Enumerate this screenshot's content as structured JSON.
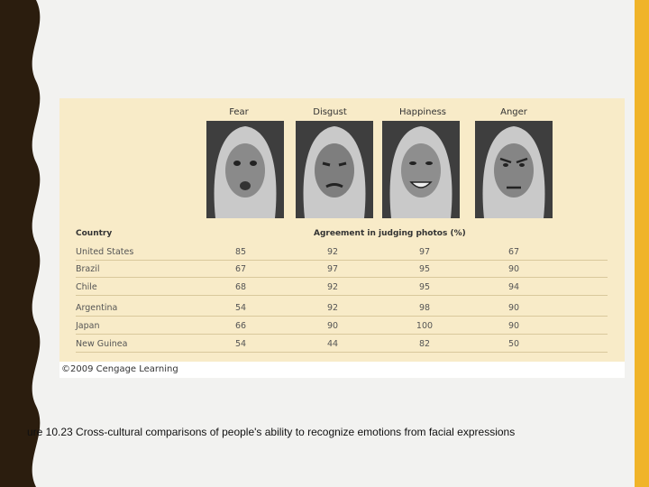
{
  "figure": {
    "emotions": [
      "Fear",
      "Disgust",
      "Happiness",
      "Anger"
    ],
    "table_header_country": "Country",
    "table_header_agreement": "Agreement in judging photos (%)",
    "rows": [
      {
        "country": "United States",
        "values": [
          "85",
          "92",
          "97",
          "67"
        ]
      },
      {
        "country": "Brazil",
        "values": [
          "67",
          "97",
          "95",
          "90"
        ]
      },
      {
        "country": "Chile",
        "values": [
          "68",
          "92",
          "95",
          "94"
        ]
      },
      {
        "country": "Argentina",
        "values": [
          "54",
          "92",
          "98",
          "90"
        ]
      },
      {
        "country": "Japan",
        "values": [
          "66",
          "90",
          "100",
          "90"
        ]
      },
      {
        "country": "New Guinea",
        "values": [
          "54",
          "44",
          "82",
          "50"
        ]
      }
    ],
    "copyright": "©2009 Cengage Learning"
  },
  "caption": "ure 10.23 Cross-cultural comparisons of people's ability to recognize emotions from facial expressions",
  "colors": {
    "accent_bar": "#f0b429",
    "figure_background": "#f8ebc8",
    "left_band": "#2b1d0e"
  }
}
